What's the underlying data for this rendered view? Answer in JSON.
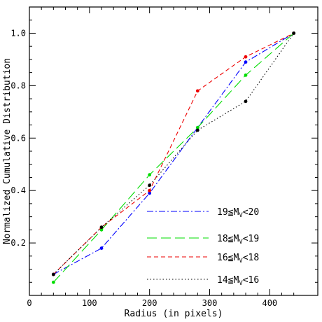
{
  "chart_data": {
    "type": "line",
    "xlabel": "Radius (in pixels)",
    "ylabel": "Normalized Cumulative Distribution",
    "xlim": [
      0,
      480
    ],
    "ylim": [
      0.0,
      1.1
    ],
    "x_ticks": [
      "0",
      "100",
      "200",
      "300",
      "400"
    ],
    "y_ticks": [
      "0.2",
      "0.4",
      "0.6",
      "0.8",
      "1.0"
    ],
    "x_tick_values": [
      0,
      100,
      200,
      300,
      400
    ],
    "y_tick_values": [
      0.2,
      0.4,
      0.6,
      0.8,
      1.0
    ],
    "grid": false,
    "legend_position": "bottom-right",
    "series": [
      {
        "legend": {
          "pre": "19≦M",
          "sub": "V",
          "post": "<20"
        },
        "color": "#0000ff",
        "dash": "dash-dot",
        "x": [
          40,
          120,
          200,
          280,
          360,
          440
        ],
        "y": [
          0.08,
          0.18,
          0.39,
          0.64,
          0.89,
          1.0
        ]
      },
      {
        "legend": {
          "pre": "18≦M",
          "sub": "V",
          "post": "<19"
        },
        "color": "#00dd00",
        "dash": "long-dash",
        "x": [
          40,
          120,
          200,
          280,
          360,
          440
        ],
        "y": [
          0.05,
          0.25,
          0.46,
          0.64,
          0.84,
          1.0
        ]
      },
      {
        "legend": {
          "pre": "16≦M",
          "sub": "V",
          "post": "<18"
        },
        "color": "#ee0000",
        "dash": "short-dash",
        "x": [
          40,
          120,
          200,
          280,
          360,
          440
        ],
        "y": [
          0.08,
          0.26,
          0.4,
          0.78,
          0.91,
          1.0
        ]
      },
      {
        "legend": {
          "pre": "14≦M",
          "sub": "V",
          "post": "<16"
        },
        "color": "#000000",
        "dash": "dotted",
        "x": [
          40,
          120,
          200,
          280,
          360,
          440
        ],
        "y": [
          0.08,
          0.26,
          0.42,
          0.63,
          0.74,
          1.0
        ]
      }
    ]
  }
}
